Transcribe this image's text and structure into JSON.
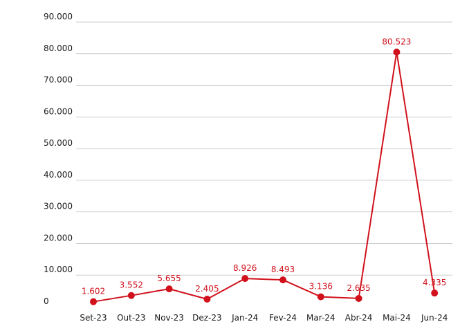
{
  "chart_data": {
    "type": "line",
    "categories": [
      "Set-23",
      "Out-23",
      "Nov-23",
      "Dez-23",
      "Jan-24",
      "Fev-24",
      "Mar-24",
      "Abr-24",
      "Mai-24",
      "Jun-24"
    ],
    "series": [
      {
        "values": [
          1602,
          3552,
          5655,
          2405,
          8926,
          8493,
          3136,
          2635,
          80523,
          4335
        ],
        "labels": [
          "1.602",
          "3.552",
          "5.655",
          "2.405",
          "8.926",
          "8.493",
          "3.136",
          "2.635",
          "80.523",
          "4.335"
        ],
        "color": "#d1101b"
      }
    ],
    "title": "",
    "xlabel": "",
    "ylabel": "",
    "ylim": [
      0,
      90000
    ],
    "yticks": [
      0,
      10000,
      20000,
      30000,
      40000,
      50000,
      60000,
      70000,
      80000,
      90000
    ],
    "ytick_labels": [
      "0",
      "10.000",
      "20.000",
      "30.000",
      "40.000",
      "50.000",
      "60.000",
      "70.000",
      "80.000",
      "90.000"
    ],
    "grid": true,
    "legend": "none"
  }
}
